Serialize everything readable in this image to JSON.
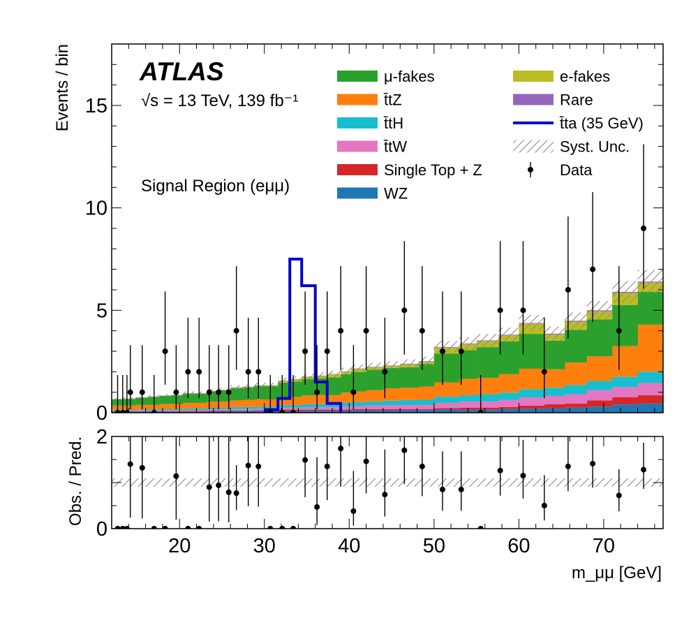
{
  "chart_data": [
    {
      "type": "bar",
      "stacked": true,
      "role": "main",
      "experiment": "ATLAS",
      "energy_label": "√s = 13 TeV, 139 fb⁻¹",
      "region_label": "Signal Region (eμμ)",
      "ylabel": "Events / bin",
      "xlim": [
        12,
        77
      ],
      "ylim": [
        0,
        18
      ],
      "y_ticks": [
        0,
        5,
        10,
        15
      ],
      "x": {
        "edges": [
          12,
          13.4,
          14.8,
          16.2,
          17.6,
          19,
          20.4,
          21.8,
          23.2,
          24.6,
          26,
          27.4,
          28.8,
          30.2,
          31.6,
          33,
          34.4,
          36,
          37.4,
          39,
          40.2,
          42,
          44,
          46,
          48.2,
          50,
          53,
          55,
          57.6,
          60,
          63,
          65.4,
          68,
          71,
          74,
          77
        ],
        "centers": [
          12.7,
          14.1,
          15.5,
          16.9,
          18.3,
          19.7,
          21.1,
          22.5,
          23.9,
          25.3,
          26.7,
          28.1,
          29.5,
          30.9,
          32.3,
          33.7,
          35.2,
          36.7,
          38.2,
          39.6,
          41.1,
          43,
          45,
          47.1,
          49.1,
          51.5,
          54,
          56.3,
          58.8,
          61.5,
          64.2,
          66.7,
          69.5,
          72.5,
          75.5
        ]
      },
      "series": [
        {
          "name": "WZ",
          "color": "#1f77b4",
          "values": [
            0.05,
            0.05,
            0.05,
            0.05,
            0.05,
            0.05,
            0.06,
            0.06,
            0.07,
            0.07,
            0.08,
            0.08,
            0.09,
            0.09,
            0.1,
            0.1,
            0.1,
            0.1,
            0.1,
            0.1,
            0.12,
            0.12,
            0.12,
            0.12,
            0.13,
            0.15,
            0.15,
            0.15,
            0.18,
            0.2,
            0.22,
            0.25,
            0.3,
            0.4,
            0.45
          ]
        },
        {
          "name": "Single Top + Z",
          "color": "#d62728",
          "values": [
            0.02,
            0.02,
            0.02,
            0.02,
            0.02,
            0.02,
            0.03,
            0.03,
            0.03,
            0.03,
            0.03,
            0.03,
            0.03,
            0.03,
            0.05,
            0.05,
            0.05,
            0.05,
            0.05,
            0.05,
            0.05,
            0.05,
            0.05,
            0.05,
            0.05,
            0.08,
            0.1,
            0.1,
            0.1,
            0.15,
            0.2,
            0.2,
            0.3,
            0.35,
            0.4
          ]
        },
        {
          "name": "ttW",
          "color": "#e377c2",
          "values": [
            0.03,
            0.03,
            0.04,
            0.04,
            0.04,
            0.05,
            0.05,
            0.05,
            0.06,
            0.06,
            0.07,
            0.07,
            0.08,
            0.08,
            0.1,
            0.1,
            0.12,
            0.12,
            0.12,
            0.15,
            0.15,
            0.18,
            0.2,
            0.2,
            0.2,
            0.25,
            0.3,
            0.3,
            0.35,
            0.4,
            0.4,
            0.45,
            0.5,
            0.5,
            0.6
          ]
        },
        {
          "name": "ttH",
          "color": "#17becf",
          "values": [
            0.05,
            0.05,
            0.05,
            0.06,
            0.06,
            0.06,
            0.07,
            0.07,
            0.08,
            0.08,
            0.1,
            0.1,
            0.1,
            0.1,
            0.12,
            0.12,
            0.15,
            0.15,
            0.15,
            0.18,
            0.2,
            0.2,
            0.22,
            0.25,
            0.25,
            0.3,
            0.3,
            0.35,
            0.35,
            0.4,
            0.4,
            0.45,
            0.45,
            0.5,
            0.55
          ]
        },
        {
          "name": "ttZ",
          "color": "#ff7f0e",
          "values": [
            0.2,
            0.2,
            0.22,
            0.22,
            0.25,
            0.25,
            0.27,
            0.27,
            0.3,
            0.3,
            0.32,
            0.35,
            0.35,
            0.35,
            0.4,
            0.4,
            0.42,
            0.45,
            0.45,
            0.5,
            0.52,
            0.55,
            0.6,
            0.6,
            0.65,
            0.7,
            0.8,
            0.8,
            0.9,
            1,
            0.9,
            1.1,
            1.2,
            1.5,
            2.3
          ]
        },
        {
          "name": "μ-fakes",
          "color": "#2ca02c",
          "values": [
            0.3,
            0.32,
            0.35,
            0.38,
            0.4,
            0.42,
            0.45,
            0.45,
            0.5,
            0.55,
            0.6,
            0.6,
            0.65,
            0.65,
            0.7,
            0.75,
            0.8,
            0.8,
            0.85,
            0.9,
            0.95,
            1,
            1,
            1,
            1.1,
            1.4,
            1.4,
            1.5,
            1.6,
            1.7,
            1.4,
            1.6,
            1.8,
            2,
            1.6
          ]
        },
        {
          "name": "e-fakes",
          "color": "#bcbd22",
          "values": [
            0.01,
            0.01,
            0.01,
            0.01,
            0.01,
            0.01,
            0.02,
            0.02,
            0.02,
            0.02,
            0.03,
            0.03,
            0.03,
            0.03,
            0.08,
            0.1,
            0.1,
            0.12,
            0.15,
            0.12,
            0.15,
            0.12,
            0.1,
            0.15,
            0.12,
            0.3,
            0.3,
            0.3,
            0.3,
            0.5,
            0.3,
            0.4,
            0.4,
            0.6,
            0.45
          ]
        },
        {
          "name": "Rare",
          "color": "#9467bd",
          "values": [
            0.01,
            0.01,
            0.01,
            0.01,
            0.01,
            0.01,
            0.01,
            0.01,
            0.01,
            0.01,
            0.01,
            0.01,
            0.01,
            0.01,
            0.02,
            0.02,
            0.02,
            0.02,
            0.02,
            0.02,
            0.02,
            0.02,
            0.02,
            0.02,
            0.02,
            0.03,
            0.03,
            0.03,
            0.03,
            0.03,
            0.04,
            0.04,
            0.05,
            0.05,
            0.05
          ]
        }
      ],
      "signal": {
        "name": "tta (35 GeV)",
        "color": "#0000cc",
        "edges": [
          30.2,
          31.6,
          33,
          34.4,
          36,
          37.4,
          39
        ],
        "values": [
          0.15,
          0.7,
          7.5,
          6.2,
          1.5,
          0.45
        ]
      },
      "uncertainty": {
        "name": "Syst. Unc.",
        "relative": 0.09
      },
      "data": {
        "name": "Data",
        "x": [
          12.7,
          13.3,
          13.8,
          14.2,
          15.6,
          17,
          18.3,
          19.6,
          21,
          22.3,
          23.5,
          24.6,
          25.8,
          26.7,
          28.1,
          29.3,
          30.7,
          32.1,
          33.4,
          34.8,
          36.2,
          37.4,
          39,
          40.5,
          42,
          44.2,
          46.5,
          48.6,
          51,
          53.2,
          55.5,
          57.8,
          60.5,
          63,
          65.8,
          68.7,
          71.8,
          74.7
        ],
        "y": [
          0,
          0,
          0,
          1,
          1,
          0,
          3,
          1,
          2,
          2,
          1,
          1,
          1,
          4,
          2,
          2,
          0,
          0,
          0,
          3,
          1,
          3,
          4,
          1,
          4,
          2,
          5,
          4,
          3,
          3,
          0,
          5,
          5,
          2,
          6,
          7,
          4,
          9
        ],
        "yerr_low": [
          0,
          0,
          0,
          0.83,
          0.83,
          0,
          1.63,
          0.83,
          1.29,
          1.29,
          0.83,
          0.83,
          0.83,
          1.91,
          1.29,
          1.29,
          0,
          0,
          0,
          1.63,
          0.83,
          1.63,
          1.91,
          0.83,
          1.91,
          1.29,
          2.16,
          1.91,
          1.63,
          1.63,
          0,
          2.16,
          2.16,
          1.29,
          2.38,
          2.58,
          1.91,
          2.94
        ],
        "yerr_high": [
          1.84,
          1.84,
          1.84,
          2.3,
          2.3,
          1.84,
          2.92,
          2.3,
          2.64,
          2.64,
          2.3,
          2.3,
          2.3,
          3.16,
          2.64,
          2.64,
          1.84,
          1.84,
          1.84,
          2.92,
          2.3,
          2.92,
          3.16,
          2.3,
          3.16,
          2.64,
          3.38,
          3.16,
          2.92,
          2.92,
          1.84,
          3.38,
          3.38,
          2.64,
          3.58,
          3.77,
          3.16,
          4.11
        ]
      },
      "legend": {
        "placement": "top",
        "entries": [
          {
            "label": "μ-fakes",
            "kind": "box",
            "color": "#2ca02c"
          },
          {
            "label": "t̄tZ",
            "kind": "box",
            "color": "#ff7f0e"
          },
          {
            "label": "t̄tH",
            "kind": "box",
            "color": "#17becf"
          },
          {
            "label": "t̄tW",
            "kind": "box",
            "color": "#e377c2"
          },
          {
            "label": "Single Top + Z",
            "kind": "box",
            "color": "#d62728"
          },
          {
            "label": "WZ",
            "kind": "box",
            "color": "#1f77b4"
          },
          {
            "label": "e-fakes",
            "kind": "box",
            "color": "#bcbd22"
          },
          {
            "label": "Rare",
            "kind": "box",
            "color": "#9467bd"
          },
          {
            "label": "t̄ta (35 GeV)",
            "kind": "line",
            "color": "#0000cc"
          },
          {
            "label": "Syst. Unc.",
            "kind": "hatch",
            "color": "#888888"
          },
          {
            "label": "Data",
            "kind": "point",
            "color": "#000000"
          }
        ]
      }
    },
    {
      "type": "scatter",
      "role": "ratio",
      "ylabel": "Obs. / Pred.",
      "xlabel": "m_μμ [GeV]",
      "xlim": [
        12,
        77
      ],
      "ylim": [
        0,
        2
      ],
      "x_ticks": [
        20,
        30,
        40,
        50,
        60,
        70
      ],
      "y_ticks": [
        0,
        2
      ],
      "x": [
        12.7,
        13.3,
        13.8,
        14.2,
        15.6,
        17,
        18.3,
        19.6,
        21,
        22.3,
        23.5,
        24.6,
        25.8,
        26.7,
        28.1,
        29.3,
        30.7,
        32.1,
        33.4,
        34.8,
        36.2,
        37.4,
        39,
        40.5,
        42,
        44.2,
        46.5,
        48.6,
        51,
        53.2,
        55.5,
        57.8,
        60.5,
        63,
        65.8,
        68.7,
        71.8,
        74.7
      ],
      "y": [
        0,
        0,
        0,
        1.4,
        1.32,
        0,
        0,
        1.14,
        0,
        0,
        0.9,
        0.94,
        0.79,
        0.77,
        1.37,
        1.35,
        0,
        0,
        0,
        1.49,
        0.47,
        1.35,
        1.74,
        0.38,
        1.46,
        0.74,
        1.7,
        1.35,
        0.85,
        0.85,
        0,
        1.26,
        1.15,
        0.5,
        1.35,
        1.41,
        0.72,
        1.28
      ],
      "uncertainty_band": [
        0.91,
        1.09
      ]
    }
  ]
}
